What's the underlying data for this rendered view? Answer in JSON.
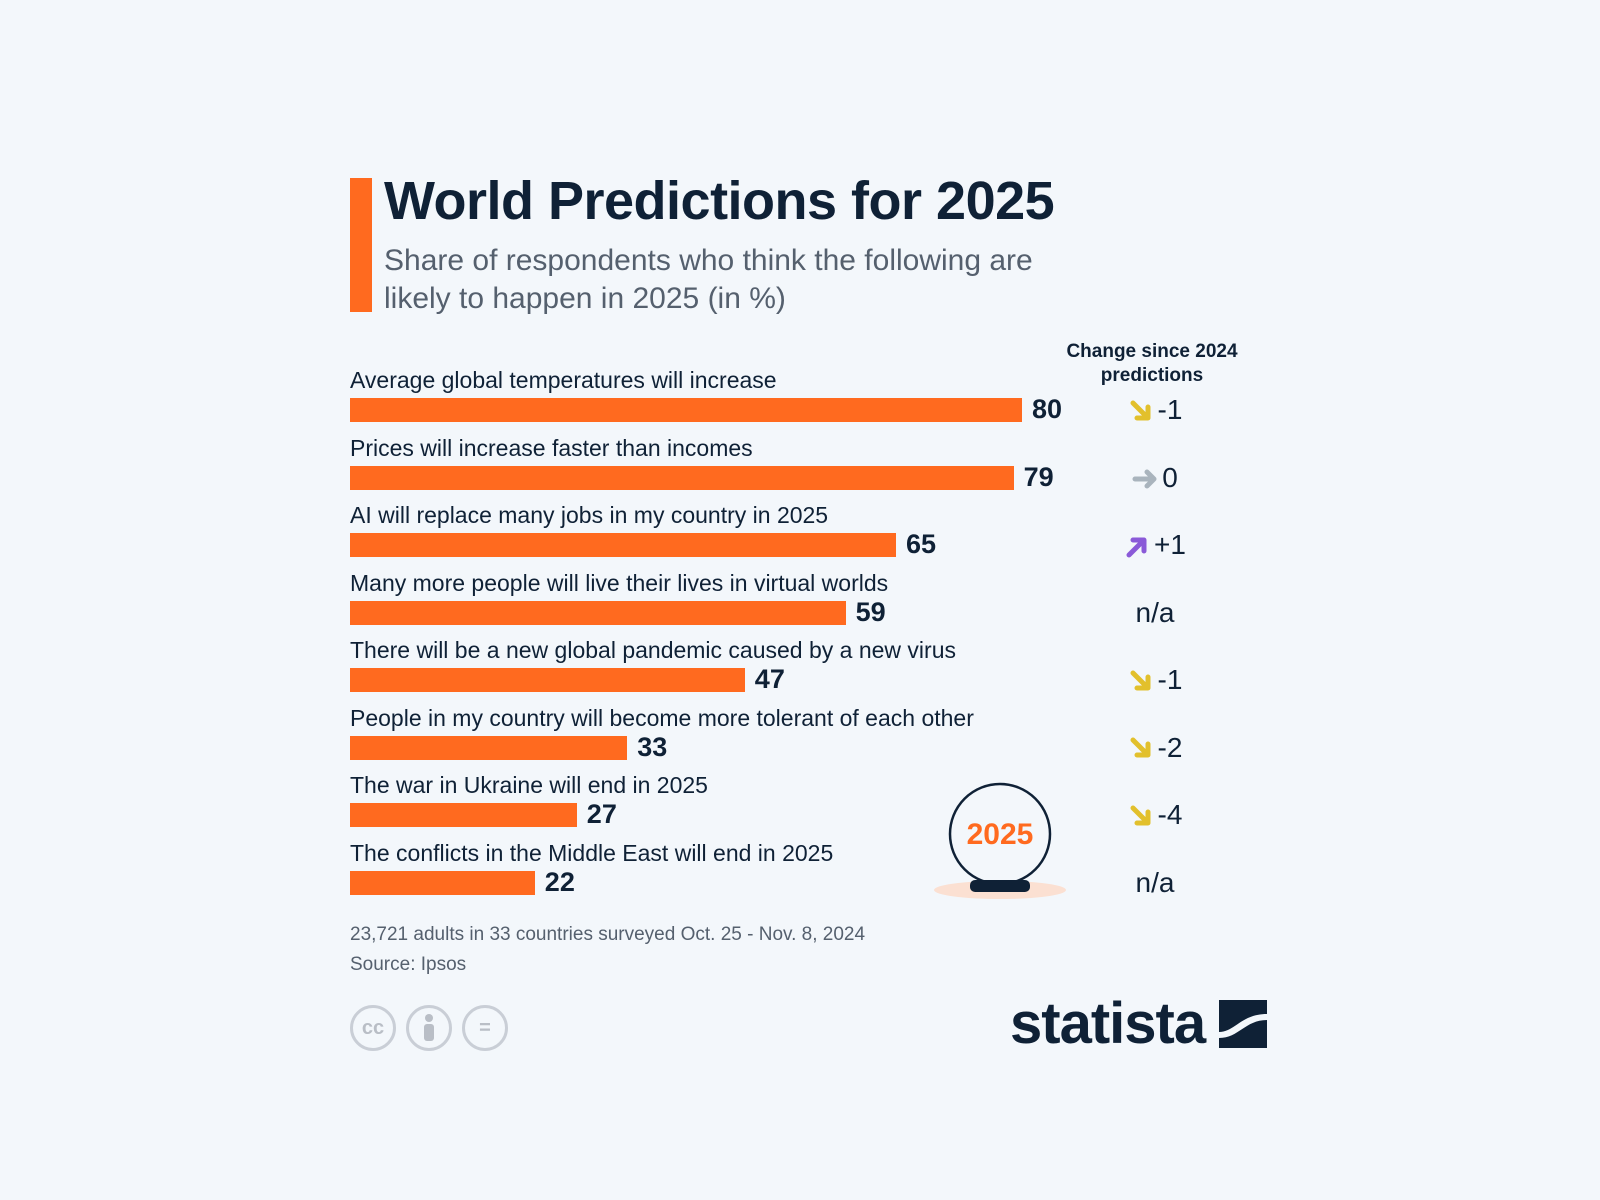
{
  "chart_data": {
    "type": "bar",
    "title": "World Predictions for 2025",
    "subtitle": "Share of respondents who think the following are likely to happen in 2025 (in %)",
    "change_header": "Change since 2024 predictions",
    "categories": [
      "Average global temperatures will increase",
      "Prices will increase faster than incomes",
      "AI will replace many jobs in my country in 2025",
      "Many more people will live their lives in virtual worlds",
      "There will be a new global pandemic caused by a new virus",
      "People in my country will become more tolerant of each other",
      "The war in Ukraine will end in 2025",
      "The conflicts in the Middle East will end in 2025"
    ],
    "values": [
      80,
      79,
      65,
      59,
      47,
      33,
      27,
      22
    ],
    "changes": [
      {
        "text": "-1",
        "direction": "down"
      },
      {
        "text": "0",
        "direction": "flat"
      },
      {
        "text": "+1",
        "direction": "up"
      },
      {
        "text": "n/a",
        "direction": "none"
      },
      {
        "text": "-1",
        "direction": "down"
      },
      {
        "text": "-2",
        "direction": "down"
      },
      {
        "text": "-4",
        "direction": "down"
      },
      {
        "text": "n/a",
        "direction": "none"
      }
    ],
    "xlim": [
      0,
      100
    ],
    "grid": false
  },
  "decoration": {
    "crystal_ball_label": "2025"
  },
  "footer": {
    "survey_note": "23,721 adults in 33 countries surveyed Oct. 25 - Nov. 8, 2024",
    "source": "Source: Ipsos",
    "license_icons": [
      "cc-icon",
      "attribution-icon",
      "no-derivatives-icon"
    ],
    "license_glyphs": [
      "cc",
      "=",
      ""
    ],
    "brand": "statista"
  },
  "colors": {
    "bar": "#ff6a1f",
    "down": "#e2c02c",
    "flat": "#a9b4bd",
    "up": "#8a5ad8",
    "text": "#0f2136"
  }
}
